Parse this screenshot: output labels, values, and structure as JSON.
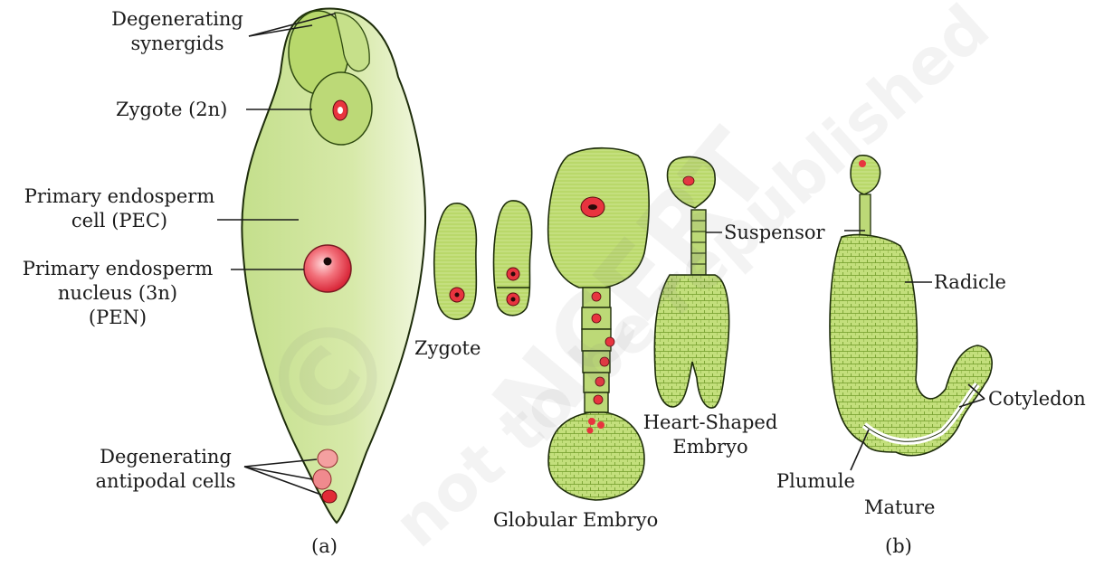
{
  "labels": {
    "degenerating_synergids": [
      "Degenerating",
      "synergids"
    ],
    "zygote_2n": "Zygote (2n)",
    "pec": [
      "Primary endosperm",
      "cell (PEC)"
    ],
    "pen": [
      "Primary endosperm",
      "nucleus (3n)",
      "(PEN)"
    ],
    "antipodal": [
      "Degenerating",
      "antipodal cells"
    ],
    "panel_a": "(a)",
    "zygote": "Zygote",
    "globular": "Globular Embryo",
    "heart": [
      "Heart-Shaped",
      "Embryo"
    ],
    "suspensor": "Suspensor",
    "radicle": "Radicle",
    "cotyledon": "Cotyledon",
    "plumule": "Plumule",
    "mature": "Mature",
    "panel_b": "(b)"
  },
  "watermark": [
    "©",
    "NCERT",
    "not to be republished"
  ],
  "colors": {
    "tissue": "#c8e08a",
    "tissue_dark": "#8fb83a",
    "cell_line": "#2f4a10",
    "nucleus": "#e8343f",
    "nucleus_core": "#2a0a0a",
    "sac_light": "#eef5d8",
    "sac_mid": "#c4df8c"
  }
}
